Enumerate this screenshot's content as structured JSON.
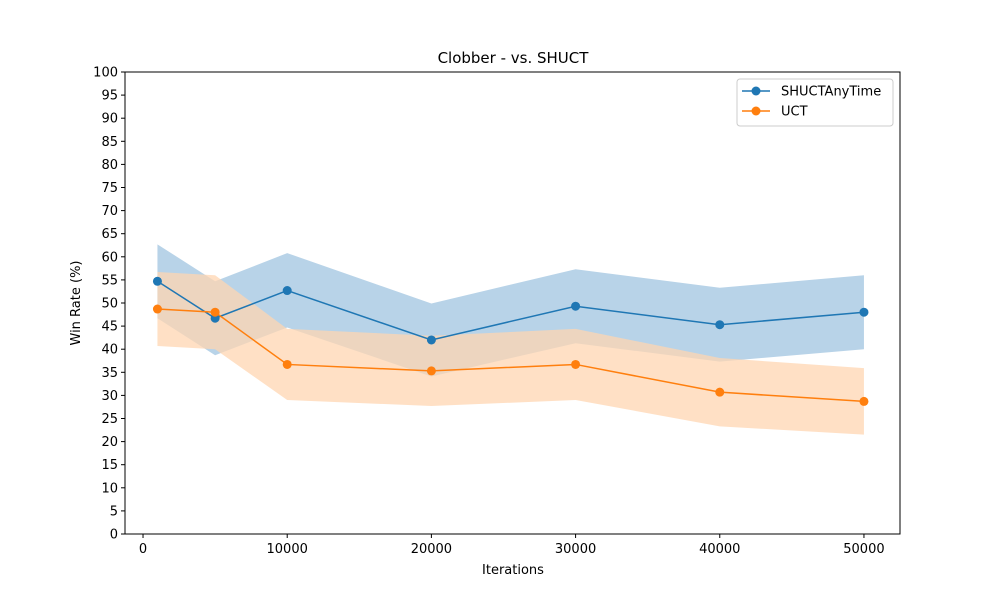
{
  "chart_data": {
    "type": "line",
    "title": "Clobber - vs. SHUCT",
    "xlabel": "Iterations",
    "ylabel": "Win Rate (%)",
    "x": [
      1000,
      5000,
      10000,
      20000,
      30000,
      40000,
      50000
    ],
    "xticks": [
      0,
      10000,
      20000,
      30000,
      40000,
      50000
    ],
    "yticks": [
      0,
      5,
      10,
      15,
      20,
      25,
      30,
      35,
      40,
      45,
      50,
      55,
      60,
      65,
      70,
      75,
      80,
      85,
      90,
      95,
      100
    ],
    "xlim": [
      -1250,
      52500
    ],
    "ylim": [
      0,
      100
    ],
    "grid": false,
    "legend_position": "top-right",
    "series": [
      {
        "name": "SHUCTAnyTime",
        "color": "#1f77b4",
        "band_color": "#b8d3e8",
        "values": [
          54.7,
          46.7,
          52.7,
          42.0,
          49.3,
          45.3,
          48.0
        ],
        "upper": [
          62.7,
          54.7,
          60.8,
          49.9,
          57.3,
          53.3,
          56.0
        ],
        "lower": [
          46.7,
          38.7,
          44.7,
          34.1,
          41.3,
          37.3,
          40.0
        ]
      },
      {
        "name": "UCT",
        "color": "#ff7f0e",
        "band_color": "#ffd5b2",
        "values": [
          48.7,
          48.0,
          36.7,
          35.3,
          36.7,
          30.7,
          28.7
        ],
        "upper": [
          56.7,
          56.0,
          44.4,
          42.9,
          44.4,
          38.1,
          35.9
        ],
        "lower": [
          40.7,
          40.0,
          29.0,
          27.7,
          29.0,
          23.3,
          21.5
        ]
      }
    ]
  }
}
